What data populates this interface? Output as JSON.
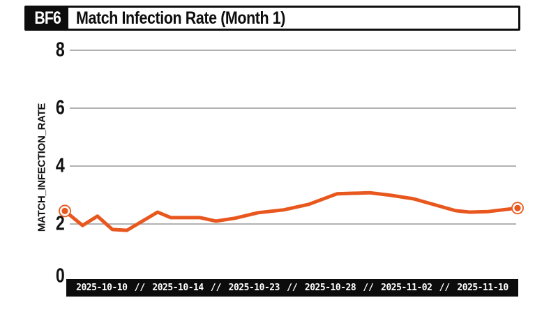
{
  "header": {
    "badge": "BF6",
    "title": "Match Infection Rate (Month 1)"
  },
  "colors": {
    "accent": "#E8571E",
    "grid": "#999999",
    "bar_background": "#0C0C0C",
    "text": "#111111",
    "background": "#FFFFFF"
  },
  "y_axis": {
    "label": "MATCH_INFECTION_RATE"
  },
  "x_axis": {
    "separator": "//"
  },
  "chart_data": {
    "type": "line",
    "title": "Match Infection Rate (Month 1)",
    "series_name": "MATCH_INFECTION_RATE",
    "line_color": "#E8571E",
    "grid": "horizontal-only",
    "legend": "none",
    "ylim": [
      0,
      8
    ],
    "y_ticks": [
      0,
      2,
      4,
      6,
      8
    ],
    "x_tick_labels": [
      "2025-10-10",
      "2025-10-14",
      "2025-10-23",
      "2025-10-28",
      "2025-11-02",
      "2025-11-10"
    ],
    "end_markers": true,
    "points": [
      {
        "x_frac": 0.0,
        "value": 2.45
      },
      {
        "x_frac": 0.039,
        "value": 1.95
      },
      {
        "x_frac": 0.072,
        "value": 2.27
      },
      {
        "x_frac": 0.105,
        "value": 1.81
      },
      {
        "x_frac": 0.137,
        "value": 1.78
      },
      {
        "x_frac": 0.205,
        "value": 2.41
      },
      {
        "x_frac": 0.234,
        "value": 2.22
      },
      {
        "x_frac": 0.299,
        "value": 2.22
      },
      {
        "x_frac": 0.334,
        "value": 2.1
      },
      {
        "x_frac": 0.376,
        "value": 2.2
      },
      {
        "x_frac": 0.427,
        "value": 2.39
      },
      {
        "x_frac": 0.484,
        "value": 2.49
      },
      {
        "x_frac": 0.539,
        "value": 2.68
      },
      {
        "x_frac": 0.601,
        "value": 3.04
      },
      {
        "x_frac": 0.673,
        "value": 3.08
      },
      {
        "x_frac": 0.72,
        "value": 2.99
      },
      {
        "x_frac": 0.77,
        "value": 2.87
      },
      {
        "x_frac": 0.863,
        "value": 2.46
      },
      {
        "x_frac": 0.894,
        "value": 2.41
      },
      {
        "x_frac": 0.935,
        "value": 2.43
      },
      {
        "x_frac": 1.0,
        "value": 2.55
      }
    ]
  }
}
